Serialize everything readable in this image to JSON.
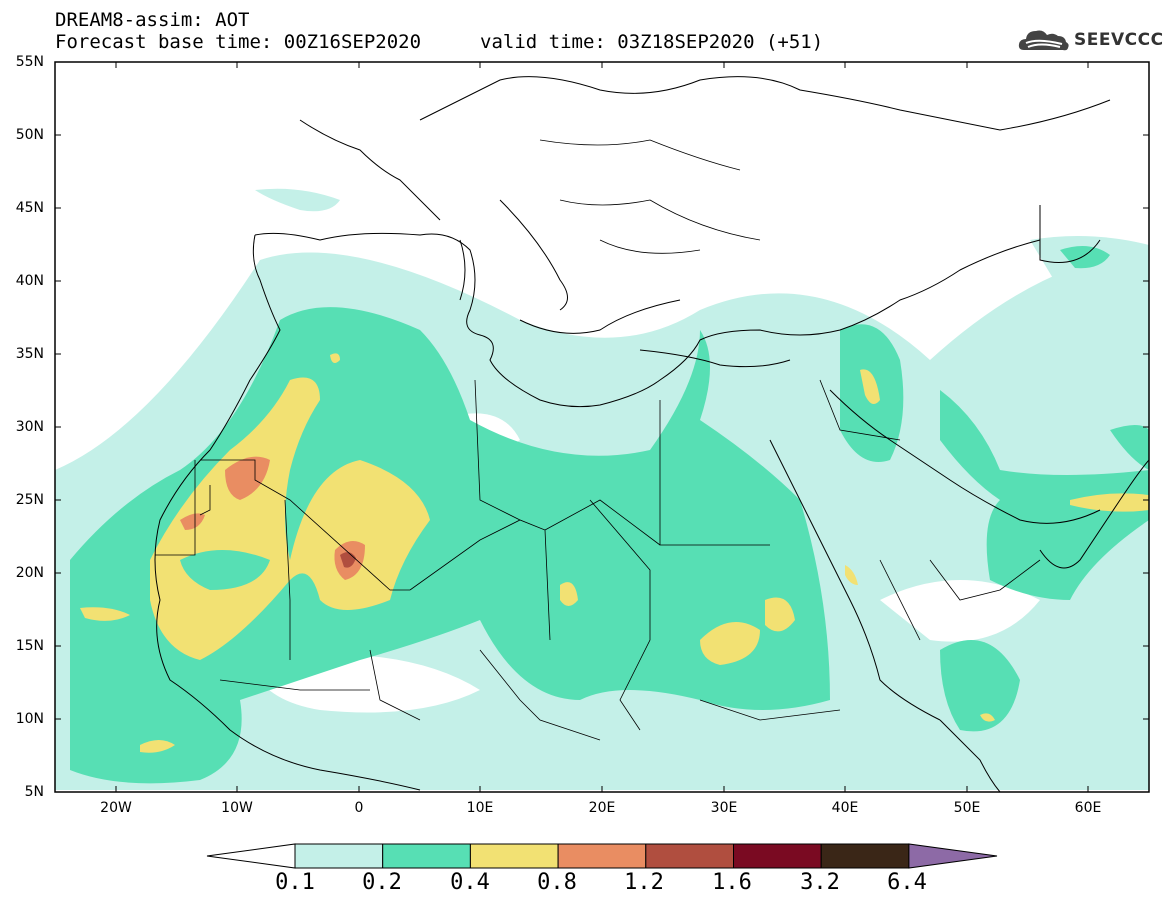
{
  "header": {
    "title_line1": "DREAM8-assim: AOT",
    "title_line2": "Forecast base time: 00Z16SEP2020",
    "valid_time": "valid time: 03Z18SEP2020 (+51)",
    "logo_text": "SEEVCCC",
    "logo_icon": "cloud-icon"
  },
  "map": {
    "lon_range": [
      -25,
      65
    ],
    "lat_range": [
      5,
      55
    ],
    "lat_labels": [
      "55N",
      "50N",
      "45N",
      "40N",
      "35N",
      "30N",
      "25N",
      "20N",
      "15N",
      "10N",
      "5N"
    ],
    "lon_labels": [
      "20W",
      "10W",
      "0",
      "10E",
      "20E",
      "30E",
      "40E",
      "50E",
      "60E"
    ]
  },
  "colorbar": {
    "labels": [
      "0.1",
      "0.2",
      "0.4",
      "0.8",
      "1.2",
      "1.6",
      "3.2",
      "6.4"
    ],
    "colors": [
      "#ffffff",
      "#c4f0e8",
      "#57dfb4",
      "#f2e173",
      "#e98d62",
      "#b04e3f",
      "#7a0a22",
      "#3a2617",
      "#8d6aa6"
    ]
  }
}
